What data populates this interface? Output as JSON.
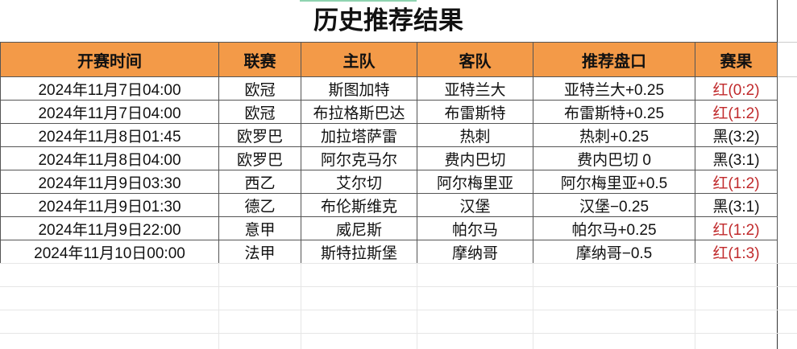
{
  "title": "历史推荐结果",
  "headers": [
    "开赛时间",
    "联赛",
    "主队",
    "客队",
    "推荐盘口",
    "赛果"
  ],
  "rows": [
    {
      "time": "2024年11月7日04:00",
      "league": "欧冠",
      "home": "斯图加特",
      "away": "亚特兰大",
      "pick": "亚特兰大+0.25",
      "result": "红(0:2)",
      "status": "red"
    },
    {
      "time": "2024年11月7日04:00",
      "league": "欧冠",
      "home": "布拉格斯巴达",
      "away": "布雷斯特",
      "pick": "布雷斯特+0.25",
      "result": "红(1:2)",
      "status": "red"
    },
    {
      "time": "2024年11月8日01:45",
      "league": "欧罗巴",
      "home": "加拉塔萨雷",
      "away": "热刺",
      "pick": "热刺+0.25",
      "result": "黑(3:2)",
      "status": "black"
    },
    {
      "time": "2024年11月8日04:00",
      "league": "欧罗巴",
      "home": "阿尔克马尔",
      "away": "费内巴切",
      "pick": "费内巴切 0",
      "result": "黑(3:1)",
      "status": "black"
    },
    {
      "time": "2024年11月9日03:30",
      "league": "西乙",
      "home": "艾尔切",
      "away": "阿尔梅里亚",
      "pick": "阿尔梅里亚+0.5",
      "result": "红(1:2)",
      "status": "red"
    },
    {
      "time": "2024年11月9日01:30",
      "league": "德乙",
      "home": "布伦斯维克",
      "away": "汉堡",
      "pick": "汉堡−0.25",
      "result": "黑(3:1)",
      "status": "black"
    },
    {
      "time": "2024年11月9日22:00",
      "league": "意甲",
      "home": "威尼斯",
      "away": "帕尔马",
      "pick": "帕尔马+0.25",
      "result": "红(1:2)",
      "status": "red"
    },
    {
      "time": "2024年11月10日00:00",
      "league": "法甲",
      "home": "斯特拉斯堡",
      "away": "摩纳哥",
      "pick": "摩纳哥−0.5",
      "result": "红(1:3)",
      "status": "red"
    }
  ],
  "colors": {
    "header_bg": "#f39a48",
    "red_result": "#c0292b"
  }
}
